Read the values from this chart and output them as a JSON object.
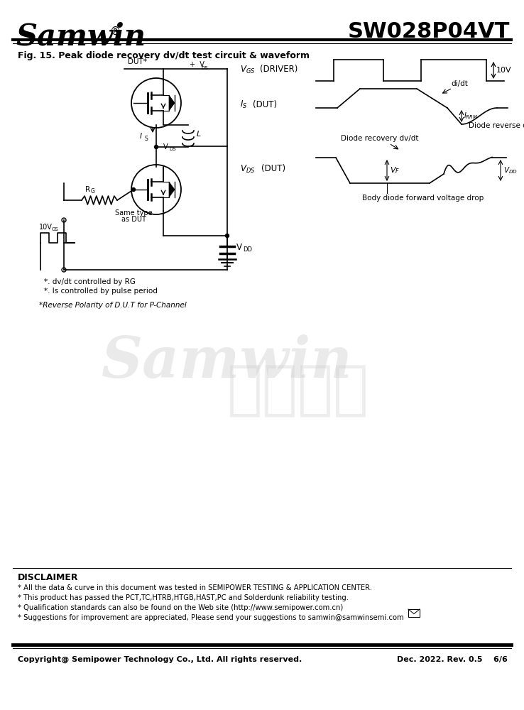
{
  "title_text": "SW028P04VT",
  "samwin_text": "Samwin",
  "fig_title": "Fig. 15. Peak diode recovery dv/dt test circuit & waveform",
  "bg_color": "#ffffff",
  "line_color": "#000000",
  "disclaimer_title": "DISCLAIMER",
  "disclaimer_lines": [
    "* All the data & curve in this document was tested in SEMIPOWER TESTING & APPLICATION CENTER.",
    "* This product has passed the PCT,TC,HTRB,HTGB,HAST,PC and Solderdunk reliability testing.",
    "* Qualification standards can also be found on the Web site (http://www.semipower.com.cn)",
    "* Suggestions for improvement are appreciated, Please send your suggestions to samwin@samwinsemi.com"
  ],
  "footer_left": "Copyright@ Semipower Technology Co., Ltd. All rights reserved.",
  "footer_right": "Dec. 2022. Rev. 0.5    6/6",
  "watermark1": "Samwin",
  "watermark2": "内部保密"
}
